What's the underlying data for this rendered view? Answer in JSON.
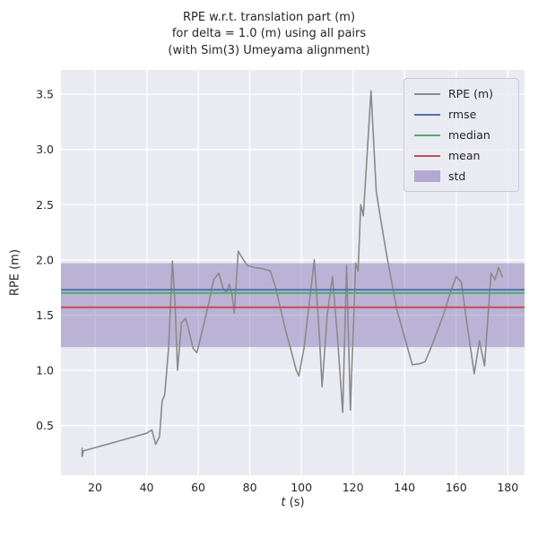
{
  "chart_data": {
    "type": "line",
    "title": "RPE w.r.t. translation part (m)\nfor delta = 1.0 (m) using all pairs\n(with Sim(3) Umeyama alignment)",
    "xlabel_italic": "t",
    "xlabel_unit": " (s)",
    "ylabel": "RPE (m)",
    "xlim": [
      6.8,
      186.5
    ],
    "ylim": [
      0.05,
      3.72
    ],
    "xticks": [
      20,
      40,
      60,
      80,
      100,
      120,
      140,
      160,
      180
    ],
    "yticks": [
      0.5,
      1.0,
      1.5,
      2.0,
      2.5,
      3.0,
      3.5
    ],
    "grid": true,
    "background": "#eaeaf2",
    "gridline_color": "#ffffff",
    "legend_position": "upper right",
    "series": [
      {
        "name": "RPE (m)",
        "color": "#8a8a8a",
        "points": [
          [
            15,
            0.3
          ],
          [
            15,
            0.22
          ],
          [
            15.5,
            0.27
          ],
          [
            40,
            0.43
          ],
          [
            42,
            0.46
          ],
          [
            43.5,
            0.33
          ],
          [
            45,
            0.4
          ],
          [
            46,
            0.72
          ],
          [
            47,
            0.78
          ],
          [
            48.5,
            1.2
          ],
          [
            50,
            1.99
          ],
          [
            51,
            1.6
          ],
          [
            52,
            1.0
          ],
          [
            53.5,
            1.43
          ],
          [
            55,
            1.47
          ],
          [
            56,
            1.4
          ],
          [
            58,
            1.2
          ],
          [
            59.5,
            1.16
          ],
          [
            62,
            1.4
          ],
          [
            64,
            1.6
          ],
          [
            66,
            1.82
          ],
          [
            68,
            1.88
          ],
          [
            69.5,
            1.75
          ],
          [
            71,
            1.7
          ],
          [
            72,
            1.78
          ],
          [
            73,
            1.7
          ],
          [
            74,
            1.52
          ],
          [
            75.5,
            2.08
          ],
          [
            77,
            2.02
          ],
          [
            79,
            1.95
          ],
          [
            82,
            1.93
          ],
          [
            85,
            1.92
          ],
          [
            88,
            1.9
          ],
          [
            90,
            1.75
          ],
          [
            92,
            1.55
          ],
          [
            94,
            1.35
          ],
          [
            96,
            1.18
          ],
          [
            98,
            1.0
          ],
          [
            99,
            0.95
          ],
          [
            101,
            1.2
          ],
          [
            103,
            1.6
          ],
          [
            105,
            2.0
          ],
          [
            107,
            1.3
          ],
          [
            108,
            0.85
          ],
          [
            110,
            1.5
          ],
          [
            112,
            1.85
          ],
          [
            114,
            1.3
          ],
          [
            116,
            0.62
          ],
          [
            117.5,
            1.95
          ],
          [
            119,
            0.64
          ],
          [
            121,
            1.97
          ],
          [
            122,
            1.9
          ],
          [
            123,
            2.5
          ],
          [
            124,
            2.4
          ],
          [
            127,
            3.53
          ],
          [
            129,
            2.62
          ],
          [
            130.5,
            2.4
          ],
          [
            133,
            2.05
          ],
          [
            137,
            1.55
          ],
          [
            140,
            1.3
          ],
          [
            143,
            1.05
          ],
          [
            146,
            1.06
          ],
          [
            148,
            1.08
          ],
          [
            151,
            1.25
          ],
          [
            155,
            1.5
          ],
          [
            158,
            1.72
          ],
          [
            160,
            1.85
          ],
          [
            162,
            1.8
          ],
          [
            164,
            1.45
          ],
          [
            167,
            0.97
          ],
          [
            169,
            1.27
          ],
          [
            171,
            1.04
          ],
          [
            173.5,
            1.88
          ],
          [
            175,
            1.82
          ],
          [
            176.5,
            1.93
          ],
          [
            178,
            1.84
          ]
        ]
      }
    ],
    "stats": {
      "rmse": {
        "value": 1.73,
        "color": "#4c72b0"
      },
      "median": {
        "value": 1.7,
        "color": "#55a868"
      },
      "mean": {
        "value": 1.57,
        "color": "#c44e52"
      },
      "std": {
        "band": [
          1.21,
          1.97
        ],
        "color": "#8172b2",
        "opacity": 0.45
      }
    },
    "legend": [
      {
        "label": "RPE (m)",
        "swatch": "line",
        "color": "#8a8a8a"
      },
      {
        "label": "rmse",
        "swatch": "line",
        "color": "#4c72b0"
      },
      {
        "label": "median",
        "swatch": "line",
        "color": "#55a868"
      },
      {
        "label": "mean",
        "swatch": "line",
        "color": "#c44e52"
      },
      {
        "label": "std",
        "swatch": "patch",
        "color": "#8172b2"
      }
    ]
  }
}
